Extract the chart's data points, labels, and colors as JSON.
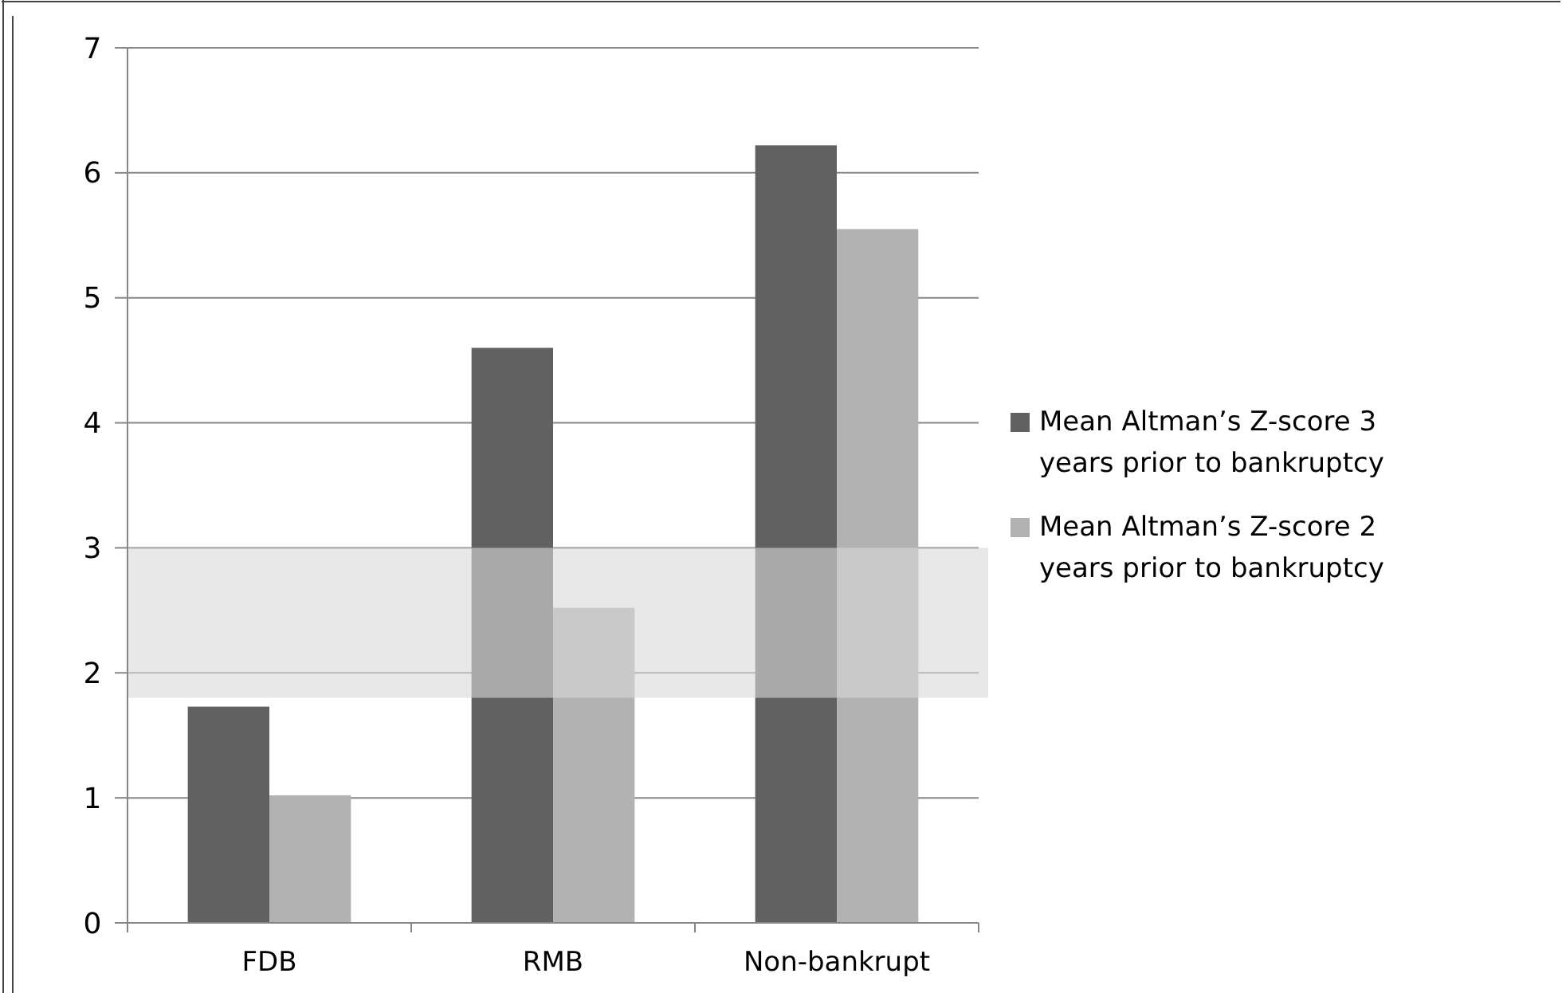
{
  "chart_data": {
    "type": "bar",
    "categories": [
      "FDB",
      "RMB",
      "Non-bankrupt"
    ],
    "series": [
      {
        "name": "Mean Altman’s Z-score 3 years prior to bankruptcy",
        "color": "#616161",
        "values": [
          1.73,
          4.6,
          6.22
        ]
      },
      {
        "name": "Mean Altman’s Z-score 2 years prior to bankruptcy",
        "color": "#b2b2b2",
        "values": [
          1.02,
          2.52,
          5.55
        ]
      }
    ],
    "ylim": [
      0,
      7
    ],
    "yticks": [
      0,
      1,
      2,
      3,
      4,
      5,
      6,
      7
    ],
    "grid": "y",
    "legend": "right",
    "bands": [
      {
        "axis": "y",
        "from": 1.8,
        "to": 3.0,
        "color": "#d8d8d8"
      }
    ]
  }
}
